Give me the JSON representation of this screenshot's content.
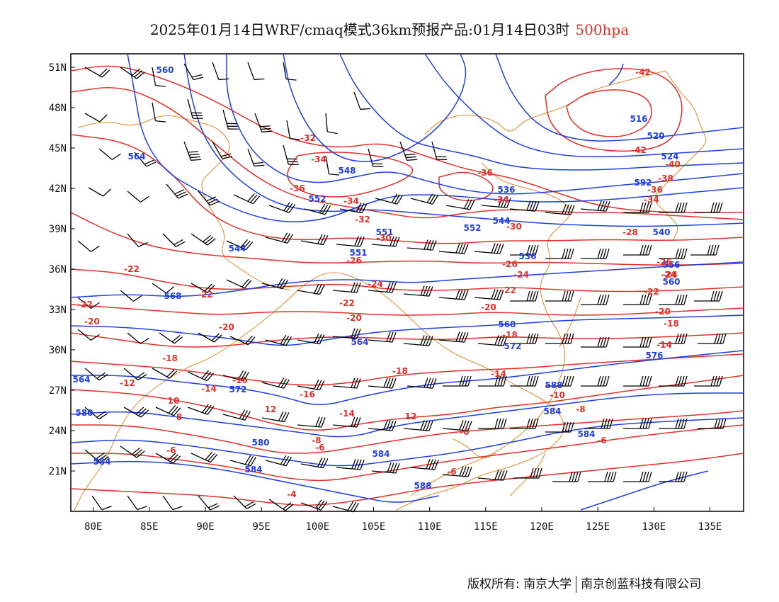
{
  "title": {
    "main": "2025年01月14日WRF/cmaq模式36km预报产品:01月14日03时",
    "level": "500hpa"
  },
  "colors": {
    "height_contour": "#1f3fe0",
    "temp_contour": "#e0302a",
    "coastline": "#e08a2a",
    "wind_barb": "#000000",
    "level_text": "#e0302a"
  },
  "map": {
    "lon_range": [
      78,
      138
    ],
    "lat_range": [
      18,
      52
    ],
    "lon_ticks": [
      "80E",
      "85E",
      "90E",
      "95E",
      "100E",
      "105E",
      "110E",
      "115E",
      "120E",
      "125E",
      "130E",
      "135E"
    ],
    "lat_ticks": [
      "51N",
      "48N",
      "45N",
      "42N",
      "39N",
      "36N",
      "33N",
      "30N",
      "27N",
      "24N",
      "21N"
    ],
    "height_labels": [
      "560",
      "564",
      "548",
      "552",
      "544",
      "536",
      "516",
      "520",
      "524",
      "540",
      "551",
      "560",
      "568",
      "564",
      "572",
      "576",
      "580",
      "584",
      "588",
      "592",
      "556"
    ],
    "temp_labels": [
      "-42",
      "-40",
      "-38",
      "-36",
      "-34",
      "-32",
      "-30",
      "-28",
      "-26",
      "-24",
      "-22",
      "-20",
      "-18",
      "-16",
      "-14",
      "-12",
      "-10",
      "-8",
      "-6",
      "-4",
      "12",
      "10",
      "8"
    ]
  },
  "footer": {
    "copyright": "版权所有: 南京大学",
    "company": "南京创蓝科技有限公司"
  }
}
